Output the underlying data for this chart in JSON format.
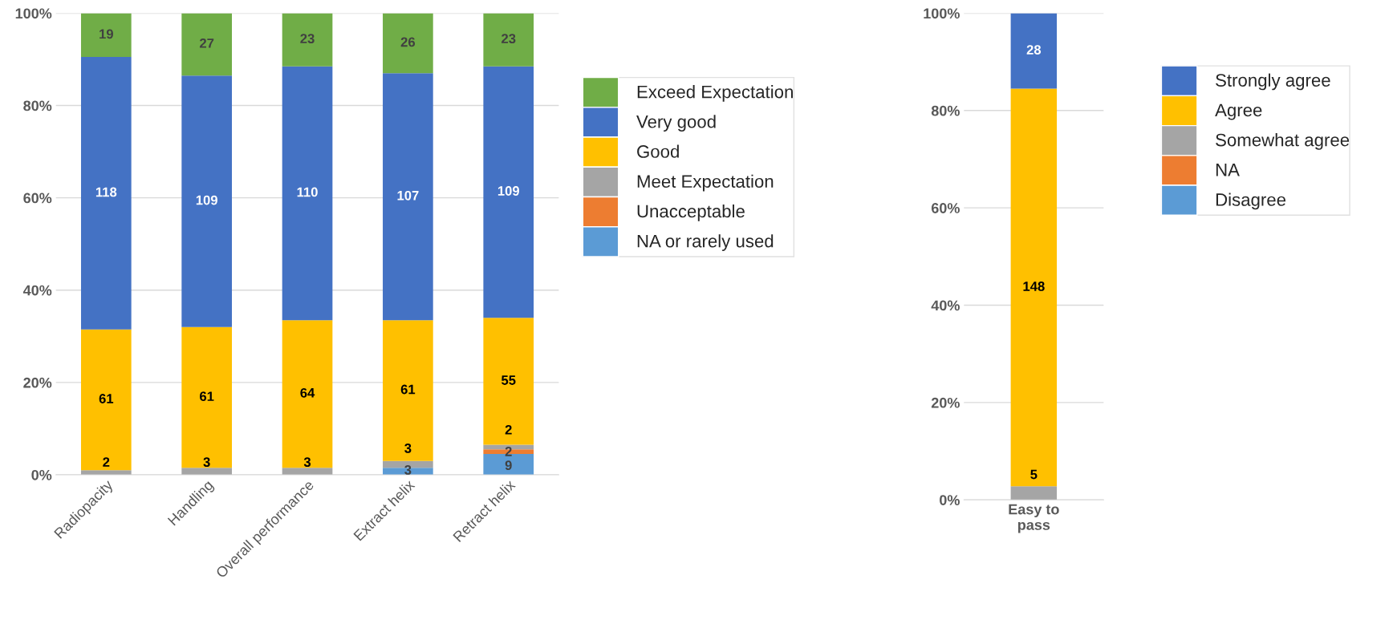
{
  "chart_data": [
    {
      "type": "bar",
      "stacked": true,
      "categories": [
        "Radiopacity",
        "Handling",
        "Overall performance",
        "Extract helix",
        "Retract helix"
      ],
      "series": [
        {
          "name": "NA or rarely used",
          "color": "#5b9bd5",
          "values": [
            null,
            null,
            null,
            1.5,
            4.5
          ]
        },
        {
          "name": "Unacceptable",
          "color": "#ed7d31",
          "values": [
            null,
            null,
            null,
            null,
            1
          ]
        },
        {
          "name": "Meet Expectation",
          "color": "#a5a5a5",
          "values": [
            1,
            1.5,
            1.5,
            1.5,
            1
          ]
        },
        {
          "name": "Good",
          "color": "#ffc000",
          "values": [
            30.5,
            30.5,
            32,
            30.5,
            27.5
          ]
        },
        {
          "name": "Very good",
          "color": "#4472c4",
          "values": [
            59,
            54.5,
            55,
            53.5,
            54.5
          ]
        },
        {
          "name": "Exceed Expectation",
          "color": "#70ad47",
          "values": [
            9.5,
            13.5,
            11.5,
            13,
            11.5
          ]
        }
      ],
      "annotations": [
        {
          "text": "2",
          "x": "Radiopacity",
          "y": 2.5
        },
        {
          "text": "61",
          "x": "Radiopacity",
          "y": 16.25
        },
        {
          "text": "118",
          "x": "Radiopacity",
          "y": 61
        },
        {
          "text": "19",
          "x": "Radiopacity",
          "y": 95.25
        },
        {
          "text": "3",
          "x": "Handling",
          "y": 2.5
        },
        {
          "text": "61",
          "x": "Handling",
          "y": 16.75
        },
        {
          "text": "109",
          "x": "Handling",
          "y": 59.25
        },
        {
          "text": "27",
          "x": "Handling",
          "y": 93.25
        },
        {
          "text": "3",
          "x": "Overall performance",
          "y": 2.5
        },
        {
          "text": "64",
          "x": "Overall performance",
          "y": 17.5
        },
        {
          "text": "110",
          "x": "Overall performance",
          "y": 61
        },
        {
          "text": "23",
          "x": "Overall performance",
          "y": 94.25
        },
        {
          "text": "3",
          "x": "Extract helix",
          "y": 0.8
        },
        {
          "text": "3",
          "x": "Extract helix",
          "y": 5.5
        },
        {
          "text": "61",
          "x": "Extract helix",
          "y": 18.25
        },
        {
          "text": "107",
          "x": "Extract helix",
          "y": 60.25
        },
        {
          "text": "26",
          "x": "Extract helix",
          "y": 93.5
        },
        {
          "text": "9",
          "x": "Retract helix",
          "y": 1.8
        },
        {
          "text": "2",
          "x": "Retract helix",
          "y": 4.8
        },
        {
          "text": "2",
          "x": "Retract helix",
          "y": 9.5
        },
        {
          "text": "55",
          "x": "Retract helix",
          "y": 20.25
        },
        {
          "text": "109",
          "x": "Retract helix",
          "y": 61.25
        },
        {
          "text": "23",
          "x": "Retract helix",
          "y": 94.25
        }
      ],
      "ylim": [
        0,
        100
      ],
      "yticks": [
        {
          "value": 0,
          "label": "0%"
        },
        {
          "value": 20,
          "label": "20%"
        },
        {
          "value": 40,
          "label": "40%"
        },
        {
          "value": 60,
          "label": "60%"
        },
        {
          "value": 80,
          "label": "80%"
        },
        {
          "value": 100,
          "label": "100%"
        }
      ],
      "grid": "y",
      "legend": "right"
    },
    {
      "type": "bar",
      "stacked": true,
      "categories": [
        "Easy to pass"
      ],
      "series": [
        {
          "name": "Disagree",
          "color": "#5b9bd5",
          "values": [
            null
          ]
        },
        {
          "name": "NA",
          "color": "#ed7d31",
          "values": [
            null
          ]
        },
        {
          "name": "Somewhat agree",
          "color": "#a5a5a5",
          "values": [
            2.8
          ]
        },
        {
          "name": "Agree",
          "color": "#ffc000",
          "values": [
            81.7
          ]
        },
        {
          "name": "Strongly agree",
          "color": "#4472c4",
          "values": [
            15.5
          ]
        }
      ],
      "annotations": [
        "5",
        "148",
        "28"
      ],
      "ylim": [
        0,
        100
      ],
      "yticks": [
        {
          "value": 0,
          "label": "0%"
        },
        {
          "value": 20,
          "label": "20%"
        },
        {
          "value": 40,
          "label": "40%"
        },
        {
          "value": 60,
          "label": "60%"
        },
        {
          "value": 80,
          "label": "80%"
        },
        {
          "value": 100,
          "label": "100%"
        }
      ],
      "grid": "y",
      "legend": "right"
    }
  ]
}
